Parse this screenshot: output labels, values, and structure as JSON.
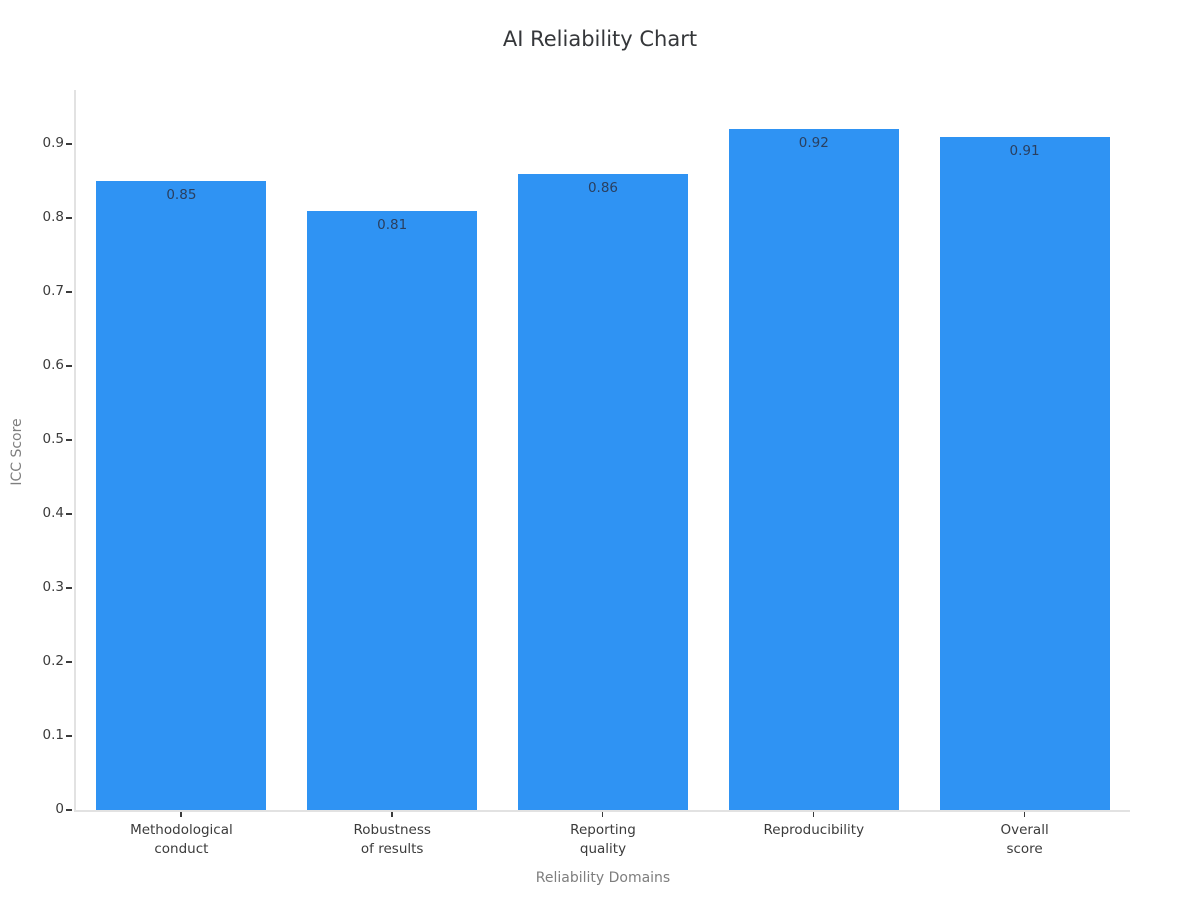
{
  "colors": {
    "background": "#ffffff",
    "bar": "#2f93f3",
    "title": "#35373a",
    "tick_label": "#3b3b3b",
    "value_label": "#2a3f5f",
    "axis_title": "#7e7e7e",
    "axis_line": "#e2e2e2"
  },
  "chart_data": {
    "type": "bar",
    "title": "AI Reliability Chart",
    "xlabel": "Reliability Domains",
    "ylabel": "ICC Score",
    "categories": [
      "Methodological\nconduct",
      "Robustness\nof results",
      "Reporting\nquality",
      "Reproducibility",
      "Overall\nscore"
    ],
    "values": [
      0.85,
      0.81,
      0.86,
      0.92,
      0.91
    ],
    "value_labels": [
      "0.85",
      "0.81",
      "0.86",
      "0.92",
      "0.91"
    ],
    "yticks": [
      0,
      0.1,
      0.2,
      0.3,
      0.4,
      0.5,
      0.6,
      0.7,
      0.8,
      0.9
    ],
    "ytick_labels": [
      "0",
      "0.1",
      "0.2",
      "0.3",
      "0.4",
      "0.5",
      "0.6",
      "0.7",
      "0.8",
      "0.9"
    ],
    "ylim": [
      0,
      0.973
    ],
    "grid": false,
    "legend": false,
    "bar_width_fraction": 0.806
  }
}
